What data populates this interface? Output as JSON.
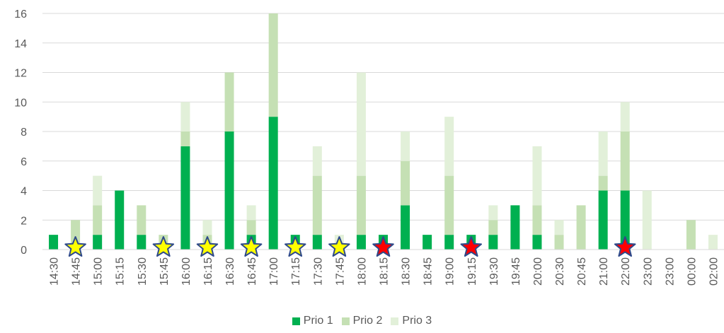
{
  "chart_data": {
    "type": "bar",
    "stacked": true,
    "categories": [
      "14:30",
      "14:45",
      "15:00",
      "15:15",
      "15:30",
      "15:45",
      "16:00",
      "16:15",
      "16:30",
      "16:45",
      "17:00",
      "17:15",
      "17:30",
      "17:45",
      "18:00",
      "18:15",
      "18:30",
      "18:45",
      "19:00",
      "19:15",
      "19:30",
      "19:45",
      "20:00",
      "20:30",
      "20:45",
      "21:00",
      "22:00",
      "23:00",
      "23:00",
      "00:00",
      "02:00"
    ],
    "series": [
      {
        "name": "Prio 1",
        "color": "#00b050",
        "values": [
          1,
          0,
          1,
          4,
          1,
          0,
          7,
          0,
          8,
          1,
          9,
          1,
          1,
          0,
          1,
          1,
          3,
          1,
          1,
          1,
          1,
          3,
          1,
          0,
          0,
          4,
          4,
          0,
          0,
          0,
          0
        ]
      },
      {
        "name": "Prio 2",
        "color": "#c5e0b4",
        "values": [
          0,
          2,
          2,
          0,
          2,
          1,
          1,
          1,
          4,
          1,
          7,
          0,
          4,
          0,
          4,
          0,
          3,
          0,
          4,
          0,
          1,
          0,
          2,
          1,
          3,
          1,
          4,
          0,
          0,
          2,
          0
        ]
      },
      {
        "name": "Prio 3",
        "color": "#e2f0d9",
        "values": [
          0,
          0,
          2,
          0,
          0,
          0,
          2,
          1,
          0,
          1,
          0,
          0,
          2,
          1,
          7,
          0,
          2,
          0,
          4,
          0,
          1,
          0,
          4,
          1,
          0,
          3,
          2,
          4,
          0,
          0,
          1
        ]
      }
    ],
    "ylim": [
      0,
      16
    ],
    "yticks": [
      "0",
      "2",
      "4",
      "6",
      "8",
      "10",
      "12",
      "14",
      "16"
    ],
    "grid": true,
    "legend": "bottom",
    "markers": [
      {
        "category_index": 1,
        "star": "yellow-star"
      },
      {
        "category_index": 5,
        "star": "yellow-star"
      },
      {
        "category_index": 7,
        "star": "yellow-star"
      },
      {
        "category_index": 9,
        "star": "yellow-star"
      },
      {
        "category_index": 11,
        "star": "yellow-star"
      },
      {
        "category_index": 13,
        "star": "yellow-star"
      },
      {
        "category_index": 15,
        "star": "red-star"
      },
      {
        "category_index": 19,
        "star": "red-star"
      },
      {
        "category_index": 26,
        "star": "red-star"
      }
    ],
    "star_colors": {
      "yellow-star": "#ffff00",
      "red-star": "#ff0000",
      "outline": "#2f4a8a"
    }
  }
}
